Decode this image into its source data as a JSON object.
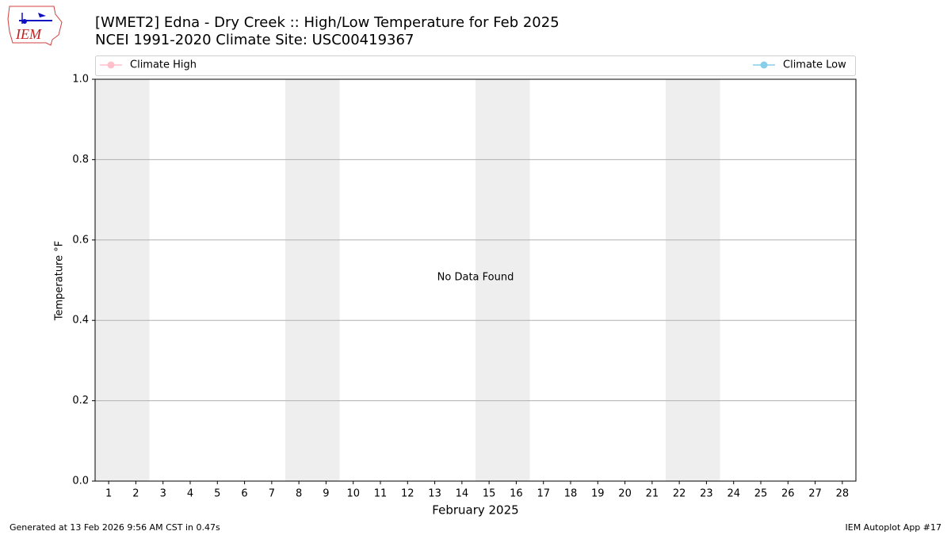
{
  "chart_data": {
    "type": "line",
    "title": "[WMET2] Edna - Dry Creek :: High/Low Temperature for Feb 2025",
    "subtitle": "NCEI 1991-2020 Climate Site: USC00419367",
    "logo_text": "IEM",
    "x_label": "February 2025",
    "y_label": "Temperature °F",
    "annotation": "No Data Found",
    "footer_left": "Generated at 13 Feb 2026 9:56 AM CST in 0.47s",
    "footer_right": "IEM Autoplot App #17",
    "x": [
      1,
      2,
      3,
      4,
      5,
      6,
      7,
      8,
      9,
      10,
      11,
      12,
      13,
      14,
      15,
      16,
      17,
      18,
      19,
      20,
      21,
      22,
      23,
      24,
      25,
      26,
      27,
      28
    ],
    "series": [
      {
        "name": "Climate High",
        "color": "#ffc0cb",
        "values": [
          null,
          null,
          null,
          null,
          null,
          null,
          null,
          null,
          null,
          null,
          null,
          null,
          null,
          null,
          null,
          null,
          null,
          null,
          null,
          null,
          null,
          null,
          null,
          null,
          null,
          null,
          null,
          null
        ]
      },
      {
        "name": "Climate Low",
        "color": "#87ceeb",
        "values": [
          null,
          null,
          null,
          null,
          null,
          null,
          null,
          null,
          null,
          null,
          null,
          null,
          null,
          null,
          null,
          null,
          null,
          null,
          null,
          null,
          null,
          null,
          null,
          null,
          null,
          null,
          null,
          null
        ]
      }
    ],
    "xlim": [
      0.5,
      28.5
    ],
    "xticks": [
      1,
      2,
      3,
      4,
      5,
      6,
      7,
      8,
      9,
      10,
      11,
      12,
      13,
      14,
      15,
      16,
      17,
      18,
      19,
      20,
      21,
      22,
      23,
      24,
      25,
      26,
      27,
      28
    ],
    "ylim": [
      0,
      1
    ],
    "yticks": [
      {
        "value": 0,
        "label": "0.0"
      },
      0.2,
      0.4,
      0.6,
      0.8,
      {
        "value": 1,
        "label": "1.0"
      }
    ],
    "grid": true
  }
}
